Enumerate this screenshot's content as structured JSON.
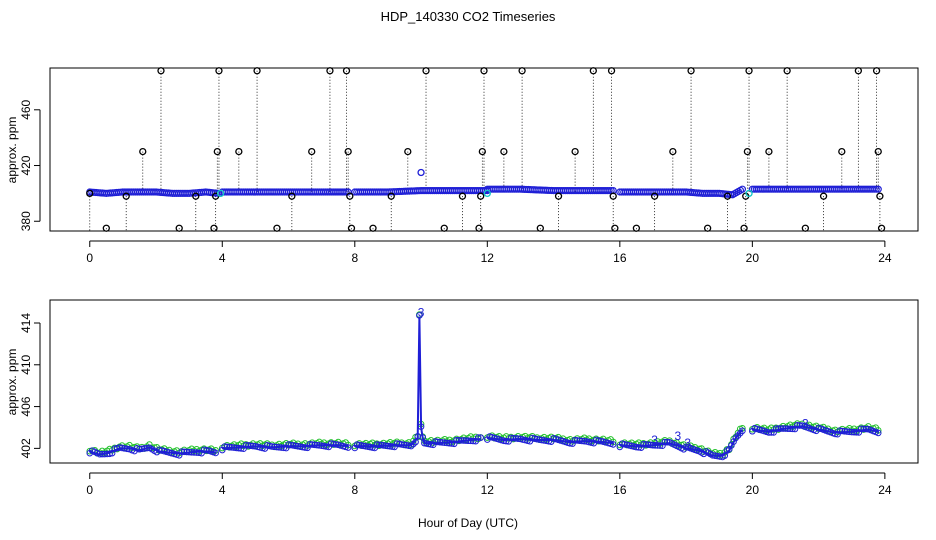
{
  "chart_data": [
    {
      "type": "scatter",
      "title": "HDP_140330  CO2 Timeseries",
      "xlabel": "",
      "ylabel": "approx. ppm",
      "xlim": [
        -1.2,
        25
      ],
      "ylim": [
        373,
        490
      ],
      "xticks": [
        0,
        4,
        8,
        12,
        16,
        20,
        24
      ],
      "yticks": [
        380,
        420,
        460
      ],
      "ytick_labels_shown": [
        "380",
        "420",
        "460"
      ],
      "colors": {
        "black_points": "#000000",
        "main_series": "#1f1fd6",
        "highlight": "#12c6c6"
      },
      "series": [
        {
          "style": "black-open-circles-with-dotted-drops",
          "points": [
            [
              0.0,
              400
            ],
            [
              0.5,
              375
            ],
            [
              1.1,
              398
            ],
            [
              1.6,
              430
            ],
            [
              2.15,
              488
            ],
            [
              2.7,
              375
            ],
            [
              3.2,
              398
            ],
            [
              3.75,
              375
            ],
            [
              3.8,
              398
            ],
            [
              3.85,
              430
            ],
            [
              3.9,
              488
            ],
            [
              4.5,
              430
            ],
            [
              5.05,
              488
            ],
            [
              5.65,
              375
            ],
            [
              6.1,
              398
            ],
            [
              6.7,
              430
            ],
            [
              7.25,
              488
            ],
            [
              7.75,
              488
            ],
            [
              7.8,
              430
            ],
            [
              7.85,
              398
            ],
            [
              7.9,
              375
            ],
            [
              8.55,
              375
            ],
            [
              9.1,
              398
            ],
            [
              9.6,
              430
            ],
            [
              10.15,
              488
            ],
            [
              10.7,
              375
            ],
            [
              11.25,
              398
            ],
            [
              11.75,
              375
            ],
            [
              11.8,
              398
            ],
            [
              11.85,
              430
            ],
            [
              11.9,
              488
            ],
            [
              12.5,
              430
            ],
            [
              13.05,
              488
            ],
            [
              13.6,
              375
            ],
            [
              14.15,
              398
            ],
            [
              14.65,
              430
            ],
            [
              15.2,
              488
            ],
            [
              15.75,
              488
            ],
            [
              15.8,
              398
            ],
            [
              15.85,
              375
            ],
            [
              16.5,
              375
            ],
            [
              17.05,
              398
            ],
            [
              17.6,
              430
            ],
            [
              18.15,
              488
            ],
            [
              18.65,
              375
            ],
            [
              19.25,
              398
            ],
            [
              19.75,
              375
            ],
            [
              19.8,
              398
            ],
            [
              19.85,
              430
            ],
            [
              19.9,
              488
            ],
            [
              20.5,
              430
            ],
            [
              21.05,
              488
            ],
            [
              21.6,
              375
            ],
            [
              22.15,
              398
            ],
            [
              22.7,
              430
            ],
            [
              23.2,
              488
            ],
            [
              23.75,
              488
            ],
            [
              23.8,
              430
            ],
            [
              23.85,
              398
            ],
            [
              23.9,
              375
            ]
          ]
        },
        {
          "style": "blue-dense-circles",
          "segments": [
            {
              "x": [
                0.0,
                0.5,
                1.0,
                1.5,
                2.0,
                2.5,
                3.0,
                3.5,
                3.9
              ],
              "y": [
                401,
                400,
                401,
                401,
                401,
                400,
                400,
                401,
                400
              ]
            },
            {
              "x": [
                4.0,
                5.0,
                6.0,
                7.0,
                7.8
              ],
              "y": [
                401,
                401,
                401,
                401,
                401
              ]
            },
            {
              "x": [
                8.0,
                9.0,
                10.0,
                11.0,
                12.0
              ],
              "y": [
                401,
                401,
                402,
                402,
                402
              ]
            },
            {
              "x": [
                12.0,
                13.0,
                14.0,
                15.0,
                15.8
              ],
              "y": [
                403,
                403,
                402,
                402,
                402
              ]
            },
            {
              "x": [
                16.0,
                17.0,
                18.0,
                18.5,
                19.0,
                19.4,
                19.7
              ],
              "y": [
                401,
                401,
                401,
                400,
                400,
                399,
                403
              ]
            },
            {
              "x": [
                20.0,
                21.0,
                22.0,
                23.0,
                23.8
              ],
              "y": [
                403,
                403,
                403,
                403,
                403
              ]
            }
          ]
        },
        {
          "style": "cyan-points",
          "points": [
            [
              3.95,
              400
            ],
            [
              10.0,
              415
            ],
            [
              12.0,
              400
            ],
            [
              19.9,
              400
            ]
          ]
        }
      ]
    },
    {
      "type": "line",
      "title": "",
      "xlabel": "Hour of Day (UTC)",
      "ylabel": "approx. ppm",
      "xlim": [
        -1.2,
        25
      ],
      "ylim": [
        400.6,
        416.2
      ],
      "xticks": [
        0,
        4,
        8,
        12,
        16,
        20,
        24
      ],
      "yticks": [
        402,
        406,
        410,
        414
      ],
      "colors": {
        "blue": "#1f1fd6",
        "green": "#22c12b"
      },
      "segments": [
        {
          "x": [
            0.0,
            0.3,
            0.6,
            0.9,
            1.2,
            1.5,
            1.8,
            2.1,
            2.4,
            2.7,
            3.0,
            3.3,
            3.6,
            3.8
          ],
          "y": [
            401.7,
            401.4,
            401.6,
            402.0,
            402.0,
            401.8,
            402.1,
            401.7,
            401.6,
            401.5,
            401.6,
            401.7,
            401.7,
            401.6
          ]
        },
        {
          "x": [
            4.0,
            4.5,
            5.0,
            5.5,
            6.0,
            6.5,
            7.0,
            7.5,
            7.8
          ],
          "y": [
            402.0,
            402.1,
            402.2,
            402.1,
            402.2,
            402.2,
            402.3,
            402.3,
            402.2
          ]
        },
        {
          "x": [
            8.0,
            8.6,
            9.2,
            9.7,
            9.9,
            9.95,
            10.0,
            10.05,
            10.1,
            10.5,
            11.0,
            11.5,
            11.8
          ],
          "y": [
            402.2,
            402.2,
            402.3,
            402.3,
            403.0,
            414.6,
            404.0,
            403.0,
            402.5,
            402.5,
            402.6,
            402.8,
            402.9
          ]
        },
        {
          "x": [
            12.0,
            12.5,
            13.0,
            13.5,
            14.0,
            14.5,
            15.0,
            15.5,
            15.8
          ],
          "y": [
            403.0,
            402.8,
            402.9,
            402.8,
            402.8,
            402.6,
            402.7,
            402.6,
            402.5
          ]
        },
        {
          "x": [
            16.0,
            16.5,
            17.0,
            17.5,
            18.0,
            18.4,
            18.8,
            19.1,
            19.3,
            19.5,
            19.7
          ],
          "y": [
            402.3,
            402.2,
            402.3,
            402.5,
            402.0,
            401.8,
            401.3,
            401.3,
            401.8,
            403.0,
            403.8
          ]
        },
        {
          "x": [
            20.0,
            20.5,
            21.0,
            21.5,
            22.0,
            22.5,
            23.0,
            23.5,
            23.8
          ],
          "y": [
            403.8,
            403.6,
            403.9,
            404.1,
            403.8,
            403.5,
            403.6,
            403.8,
            403.6
          ]
        }
      ],
      "annotations": [
        {
          "x": 10.0,
          "y": 415.0,
          "text": "3"
        },
        {
          "x": 17.05,
          "y": 402.8,
          "text": "3"
        },
        {
          "x": 17.75,
          "y": 403.2,
          "text": "3"
        },
        {
          "x": 18.05,
          "y": 402.5,
          "text": "3"
        },
        {
          "x": 21.6,
          "y": 404.4,
          "text": "3"
        }
      ]
    }
  ]
}
